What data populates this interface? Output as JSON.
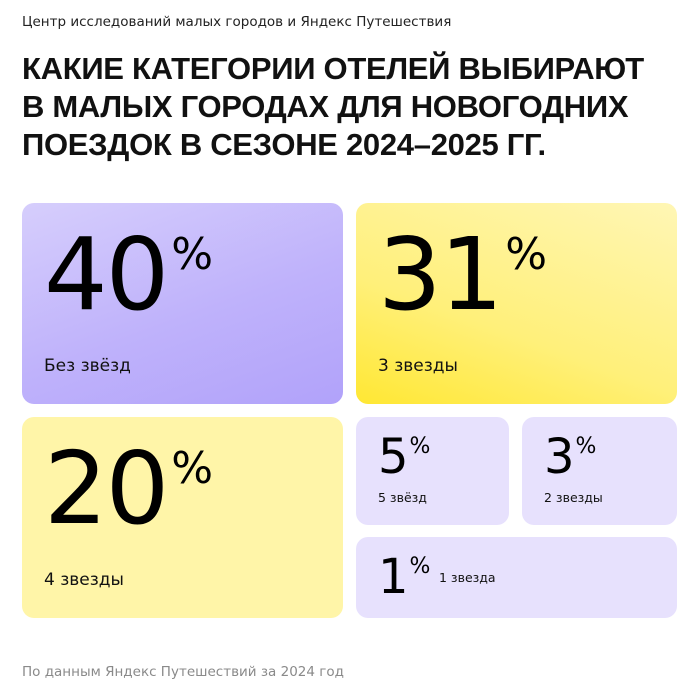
{
  "header": {
    "source": "Центр исследований малых городов и Яндекс Путешествия",
    "title_lines": [
      "КАКИЕ КАТЕГОРИИ ОТЕЛЕЙ ВЫБИРАЮТ",
      "В МАЛЫХ ГОРОДАХ ДЛЯ НОВОГОДНИХ",
      "ПОЕЗДОК В СЕЗОНЕ 2024–2025 ГГ."
    ]
  },
  "chart_data": {
    "type": "table",
    "title": "КАКИЕ КАТЕГОРИИ ОТЕЛЕЙ ВЫБИРАЮТ В МАЛЫХ ГОРОДАХ ДЛЯ НОВОГОДНИХ ПОЕЗДОК В СЕЗОНЕ 2024–2025 ГГ.",
    "unit": "%",
    "categories": [
      "Без звёзд",
      "3 звезды",
      "4 звезды",
      "5 звёзд",
      "2 звезды",
      "1 звезда"
    ],
    "values": [
      40,
      31,
      20,
      5,
      3,
      1
    ],
    "colors": {
      "lavender": "#bfb2fb",
      "yellow": "#fff07a",
      "pale_yellow": "#fff5a8",
      "pale_lavender": "#e7e1fd"
    }
  },
  "footer": {
    "note": "По данным Яндекс Путешествий за 2024 год"
  }
}
